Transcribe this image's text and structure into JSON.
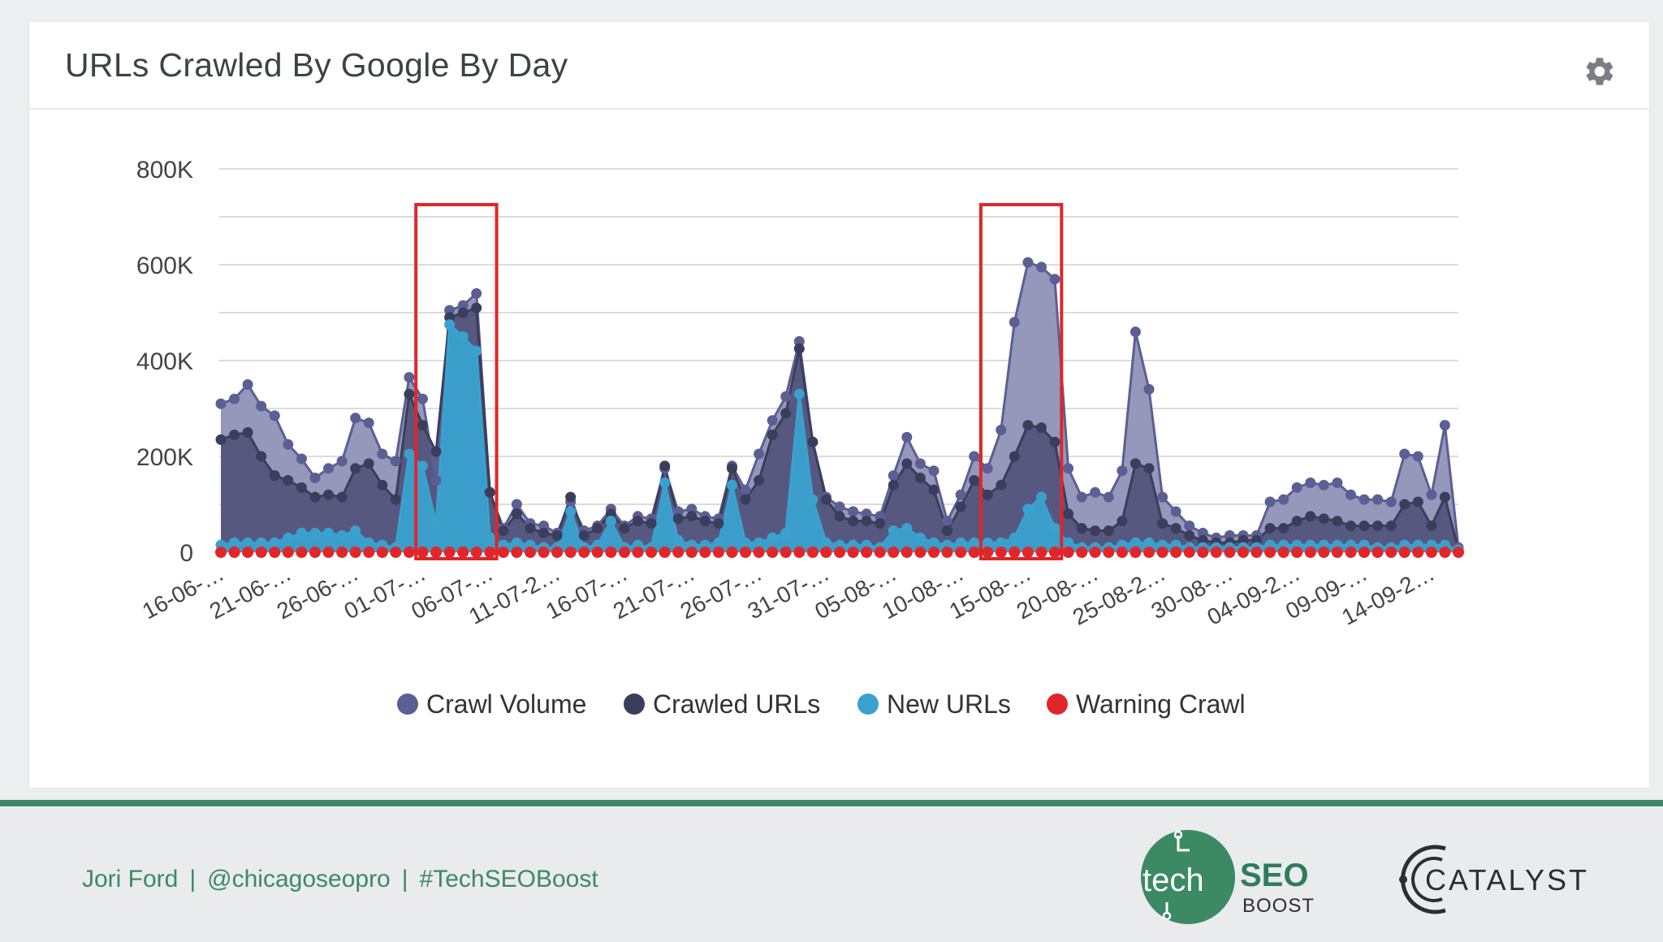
{
  "card": {
    "title": "URLs Crawled By Google By Day",
    "settings_icon": "gear-icon"
  },
  "chart_data": {
    "type": "area",
    "title": "URLs Crawled By Google By Day",
    "xlabel": "",
    "ylabel": "",
    "ylim": [
      0,
      800000
    ],
    "y_ticks": [
      0,
      200000,
      400000,
      600000,
      800000
    ],
    "y_tick_labels": [
      "0",
      "200K",
      "400K",
      "600K",
      "800K"
    ],
    "grid": true,
    "legend_position": "bottom",
    "x_tick_labels": [
      "16-06-…",
      "21-06-…",
      "26-06-…",
      "01-07-…",
      "06-07-…",
      "11-07-2…",
      "16-07-…",
      "21-07-…",
      "26-07-…",
      "31-07-…",
      "05-08-…",
      "10-08-…",
      "15-08-…",
      "20-08-…",
      "25-08-2…",
      "30-08-…",
      "04-09-2…",
      "09-09-…",
      "14-09-2…"
    ],
    "series": [
      {
        "name": "Crawl Volume",
        "color": "#5b5f93",
        "values": [
          310000,
          320000,
          350000,
          305000,
          285000,
          225000,
          195000,
          155000,
          175000,
          190000,
          280000,
          270000,
          205000,
          190000,
          365000,
          320000,
          150000,
          505000,
          515000,
          540000,
          125000,
          50000,
          100000,
          60000,
          55000,
          40000,
          105000,
          45000,
          55000,
          90000,
          55000,
          75000,
          70000,
          175000,
          85000,
          90000,
          75000,
          70000,
          180000,
          130000,
          205000,
          275000,
          325000,
          440000,
          230000,
          115000,
          95000,
          85000,
          80000,
          75000,
          160000,
          240000,
          185000,
          170000,
          65000,
          120000,
          200000,
          175000,
          255000,
          480000,
          605000,
          595000,
          570000,
          175000,
          115000,
          125000,
          115000,
          170000,
          460000,
          340000,
          115000,
          85000,
          55000,
          40000,
          30000,
          35000,
          35000,
          35000,
          105000,
          110000,
          135000,
          145000,
          140000,
          145000,
          120000,
          110000,
          110000,
          105000,
          205000,
          200000,
          120000,
          265000,
          10000
        ]
      },
      {
        "name": "Crawled URLs",
        "color": "#3b3d5c",
        "values": [
          235000,
          245000,
          250000,
          200000,
          160000,
          150000,
          135000,
          115000,
          120000,
          115000,
          175000,
          185000,
          140000,
          110000,
          330000,
          265000,
          210000,
          490000,
          500000,
          510000,
          125000,
          45000,
          80000,
          50000,
          40000,
          35000,
          115000,
          35000,
          50000,
          80000,
          50000,
          65000,
          60000,
          180000,
          70000,
          75000,
          65000,
          60000,
          175000,
          110000,
          150000,
          245000,
          290000,
          425000,
          230000,
          110000,
          75000,
          65000,
          65000,
          60000,
          140000,
          185000,
          155000,
          130000,
          45000,
          95000,
          150000,
          120000,
          140000,
          200000,
          265000,
          260000,
          230000,
          80000,
          50000,
          45000,
          45000,
          65000,
          185000,
          175000,
          60000,
          50000,
          35000,
          25000,
          20000,
          20000,
          25000,
          25000,
          50000,
          50000,
          65000,
          75000,
          70000,
          65000,
          55000,
          55000,
          55000,
          55000,
          100000,
          105000,
          55000,
          115000,
          5000
        ]
      },
      {
        "name": "New URLs",
        "color": "#3aa1cf",
        "values": [
          15000,
          20000,
          20000,
          20000,
          20000,
          30000,
          40000,
          40000,
          40000,
          35000,
          45000,
          20000,
          15000,
          10000,
          205000,
          180000,
          60000,
          475000,
          450000,
          420000,
          30000,
          15000,
          20000,
          15000,
          10000,
          10000,
          85000,
          10000,
          15000,
          65000,
          10000,
          15000,
          10000,
          145000,
          25000,
          15000,
          15000,
          20000,
          140000,
          20000,
          20000,
          30000,
          40000,
          330000,
          110000,
          20000,
          15000,
          15000,
          15000,
          10000,
          45000,
          50000,
          30000,
          20000,
          15000,
          20000,
          20000,
          20000,
          20000,
          30000,
          90000,
          115000,
          50000,
          20000,
          10000,
          10000,
          10000,
          15000,
          20000,
          20000,
          15000,
          15000,
          10000,
          10000,
          10000,
          10000,
          10000,
          10000,
          15000,
          15000,
          15000,
          15000,
          15000,
          15000,
          15000,
          15000,
          10000,
          10000,
          15000,
          15000,
          15000,
          15000,
          5000
        ]
      },
      {
        "name": "Warning Crawl",
        "color": "#e0262b",
        "values": [
          0,
          0,
          0,
          0,
          0,
          0,
          0,
          0,
          0,
          0,
          0,
          0,
          0,
          0,
          0,
          0,
          0,
          0,
          0,
          0,
          0,
          0,
          0,
          0,
          0,
          0,
          0,
          0,
          0,
          0,
          0,
          0,
          0,
          0,
          0,
          0,
          0,
          0,
          0,
          0,
          0,
          0,
          0,
          0,
          0,
          0,
          0,
          0,
          0,
          0,
          0,
          0,
          0,
          0,
          0,
          0,
          0,
          0,
          0,
          0,
          0,
          0,
          0,
          0,
          0,
          0,
          0,
          0,
          0,
          0,
          0,
          0,
          0,
          0,
          0,
          0,
          0,
          0,
          0,
          0,
          0,
          0,
          0,
          0,
          0,
          0,
          0,
          0,
          0,
          0,
          0,
          0,
          0
        ]
      }
    ],
    "highlights": [
      {
        "start_index": 15,
        "end_index": 20
      },
      {
        "start_index": 57,
        "end_index": 62
      }
    ]
  },
  "footer": {
    "author": "Jori Ford",
    "handle": "@chicagoseopro",
    "hashtag": "#TechSEOBoost",
    "separator": "|",
    "techseo_logo": {
      "word1": "tech",
      "word2": "SEO",
      "word3": "BOOST",
      "brand_color": "#3b8a63",
      "seo_color": "#2f7c5c"
    },
    "catalyst_logo": {
      "name": "CATALYST",
      "color": "#2b2e33"
    }
  }
}
